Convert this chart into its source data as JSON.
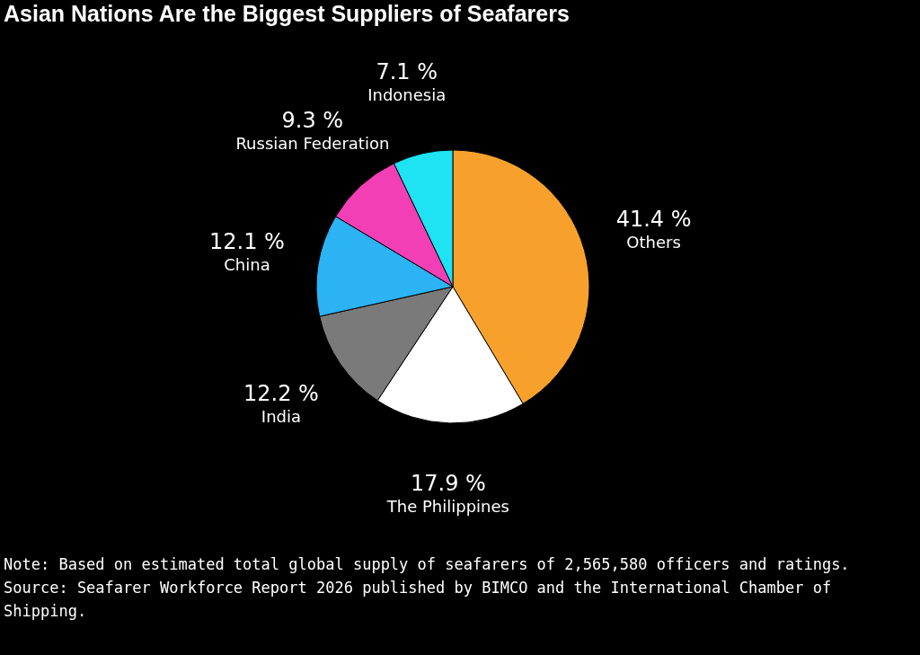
{
  "chart_data": {
    "type": "pie",
    "title": "Asian Nations Are the Biggest Suppliers of Seafarers",
    "categories": [
      "Others",
      "The Philippines",
      "India",
      "China",
      "Russian Federation",
      "Indonesia"
    ],
    "values": [
      41.4,
      17.9,
      12.2,
      12.1,
      9.3,
      7.1
    ],
    "colors": [
      "#f7a12c",
      "#ffffff",
      "#7a7a7a",
      "#2bb3f3",
      "#f23fb5",
      "#1fe3f2"
    ],
    "value_labels": [
      "41.4 %",
      "17.9 %",
      "12.2 %",
      "12.1 %",
      "9.3 %",
      "7.1 %"
    ],
    "legend": false,
    "annotations": [
      "Note: Based on estimated total global supply of seafarers of 2,565,580 officers and ratings.",
      "Source: Seafarer Workforce Report 2026 published by BIMCO and the International Chamber of Shipping."
    ]
  }
}
